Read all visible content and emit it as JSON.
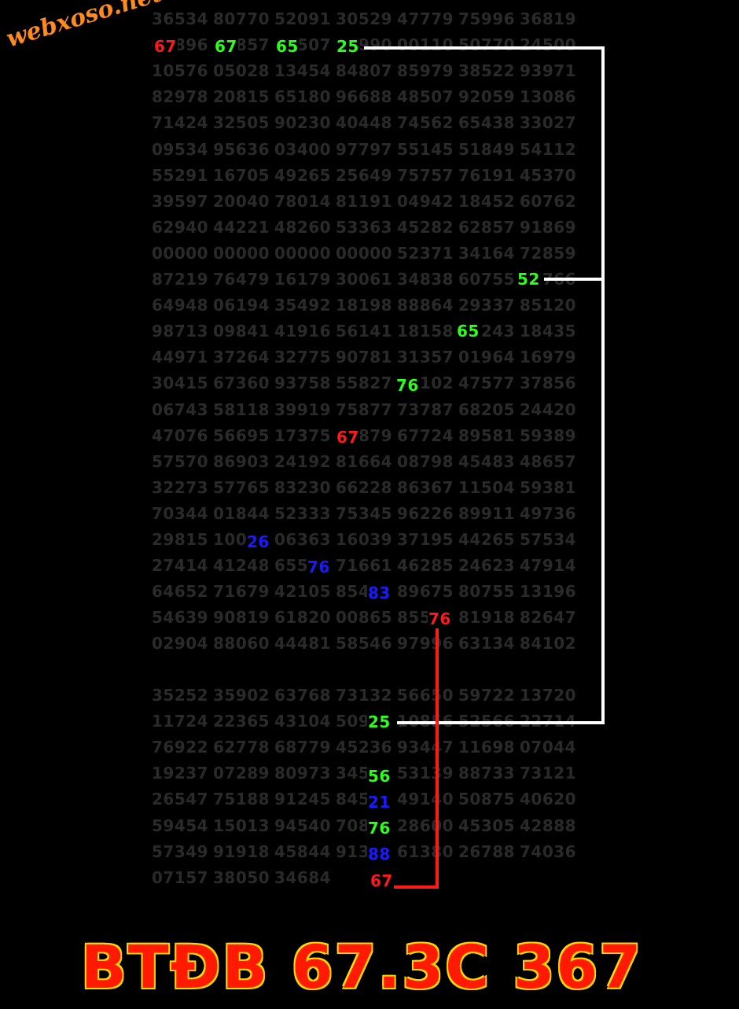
{
  "logo": "webxoso.net",
  "headline": "BTĐB 67.3C 367",
  "colors": {
    "red": "#ff1a1a",
    "green": "#2bff1a",
    "blue": "#1a1aff",
    "white": "#ffffff",
    "dim_text": "#2a2a2a"
  },
  "grid_rows": [
    [
      "36534",
      "80770",
      "52091",
      "30529",
      "47779",
      "75996",
      "36819"
    ],
    [
      "67896",
      "67857",
      "65507",
      "25990",
      "00110",
      "50770",
      "24500"
    ],
    [
      "10576",
      "05028",
      "13454",
      "84807",
      "85979",
      "38522",
      "93971"
    ],
    [
      "82978",
      "20815",
      "65180",
      "96688",
      "48507",
      "92059",
      "13086"
    ],
    [
      "71424",
      "32505",
      "90230",
      "40448",
      "74562",
      "65438",
      "33027"
    ],
    [
      "09534",
      "95636",
      "03400",
      "97797",
      "55145",
      "51849",
      "54112"
    ],
    [
      "55291",
      "16705",
      "49265",
      "25649",
      "75757",
      "76191",
      "45370"
    ],
    [
      "39597",
      "20040",
      "78014",
      "81191",
      "04942",
      "18452",
      "60762"
    ],
    [
      "62940",
      "44221",
      "48260",
      "53363",
      "45282",
      "62857",
      "91869"
    ],
    [
      "00000",
      "00000",
      "00000",
      "00000",
      "52371",
      "34164",
      "72859"
    ],
    [
      "87219",
      "76479",
      "16179",
      "30061",
      "34838",
      "60755",
      "52766"
    ],
    [
      "64948",
      "06194",
      "35492",
      "18198",
      "88864",
      "29337",
      "85120"
    ],
    [
      "98713",
      "09841",
      "41916",
      "56141",
      "18158",
      "65243",
      "18435"
    ],
    [
      "44971",
      "37264",
      "32775",
      "90781",
      "31357",
      "01964",
      "16979"
    ],
    [
      "30415",
      "67360",
      "93758",
      "55827",
      "76102",
      "47577",
      "37856"
    ],
    [
      "06743",
      "58118",
      "39919",
      "75877",
      "73787",
      "68205",
      "24420"
    ],
    [
      "47076",
      "56695",
      "17375",
      "67879",
      "67724",
      "89581",
      "59389"
    ],
    [
      "57570",
      "86903",
      "24192",
      "81664",
      "08798",
      "45483",
      "48657"
    ],
    [
      "32273",
      "57765",
      "83230",
      "66228",
      "86367",
      "11504",
      "59381"
    ],
    [
      "70344",
      "01844",
      "52333",
      "75345",
      "96226",
      "89911",
      "49736"
    ],
    [
      "29815",
      "10026",
      "06363",
      "16039",
      "37195",
      "44265",
      "57534"
    ],
    [
      "27414",
      "41248",
      "65576",
      "71661",
      "46285",
      "24623",
      "47914"
    ],
    [
      "64652",
      "71679",
      "42105",
      "85483",
      "89675",
      "80755",
      "13196"
    ],
    [
      "54639",
      "90819",
      "61820",
      "00865",
      "85576",
      "81918",
      "82647"
    ],
    [
      "02904",
      "88060",
      "44481",
      "58546",
      "97996",
      "63134",
      "84102"
    ]
  ],
  "grid_rows_bottom": [
    [
      "35252",
      "35902",
      "63768",
      "73132",
      "56650",
      "59722",
      "13720"
    ],
    [
      "11724",
      "22365",
      "43104",
      "50925",
      "10856",
      "52566",
      "22714"
    ],
    [
      "76922",
      "62778",
      "68779",
      "45236",
      "93447",
      "11698",
      "07044"
    ],
    [
      "19237",
      "07289",
      "80973",
      "34556",
      "53139",
      "88733",
      "73121"
    ],
    [
      "26547",
      "75188",
      "91245",
      "84521",
      "49140",
      "50875",
      "40620"
    ],
    [
      "59454",
      "15013",
      "94540",
      "70876",
      "28600",
      "45305",
      "42888"
    ],
    [
      "57349",
      "91918",
      "45844",
      "91388",
      "61380",
      "26788",
      "74036"
    ],
    [
      "07157",
      "38050",
      "34684",
      "",
      "",
      "",
      ""
    ]
  ],
  "highlights": [
    {
      "text": "67",
      "color": "red"
    },
    {
      "text": "67",
      "color": "green"
    },
    {
      "text": "65",
      "color": "green"
    },
    {
      "text": "25",
      "color": "green"
    },
    {
      "text": "52",
      "color": "green"
    },
    {
      "text": "65",
      "color": "green"
    },
    {
      "text": "76",
      "color": "green"
    },
    {
      "text": "67",
      "color": "red"
    },
    {
      "text": "26",
      "color": "blue"
    },
    {
      "text": "76",
      "color": "blue"
    },
    {
      "text": "83",
      "color": "blue"
    },
    {
      "text": "76",
      "color": "red"
    },
    {
      "text": "25",
      "color": "green"
    },
    {
      "text": "56",
      "color": "green"
    },
    {
      "text": "21",
      "color": "blue"
    },
    {
      "text": "76",
      "color": "green"
    },
    {
      "text": "88",
      "color": "blue"
    },
    {
      "text": "67",
      "color": "red"
    }
  ]
}
